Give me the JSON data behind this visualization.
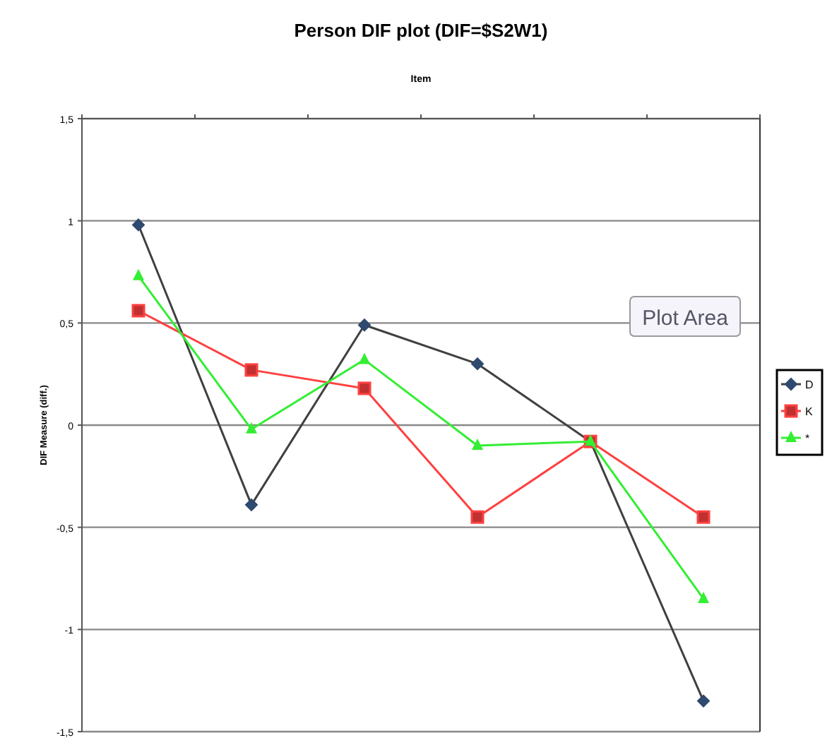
{
  "chart_data": {
    "type": "line",
    "title": "Person DIF plot (DIF=$S2W1)",
    "xlabel": "Item",
    "ylabel": "DIF Measure (diff.)",
    "categories": [
      null,
      null,
      null,
      null,
      null,
      null
    ],
    "ylim": [
      -1.5,
      1.5
    ],
    "yticks": [
      {
        "value": -1.5,
        "label": "-1,5"
      },
      -1,
      {
        "value": -0.5,
        "label": "-0,5"
      },
      0,
      {
        "value": 0.5,
        "label": "0,5"
      },
      1,
      {
        "value": 1.5,
        "label": "1,5"
      }
    ],
    "grid": "y",
    "legend": "right",
    "annotations": [
      "Plot Area"
    ],
    "series": [
      {
        "name": "D",
        "color": "#404040",
        "marker": "diamond",
        "values": [
          0.98,
          -0.39,
          0.49,
          0.3,
          -0.08,
          -1.35
        ]
      },
      {
        "name": "K",
        "color": "#ff4040",
        "marker": "square",
        "values": [
          0.56,
          0.27,
          0.18,
          -0.45,
          -0.08,
          -0.45
        ]
      },
      {
        "name": "*",
        "color": "#33ee33",
        "marker": "triangle",
        "values": [
          0.73,
          -0.02,
          0.32,
          -0.1,
          -0.08,
          -0.85
        ]
      }
    ]
  }
}
